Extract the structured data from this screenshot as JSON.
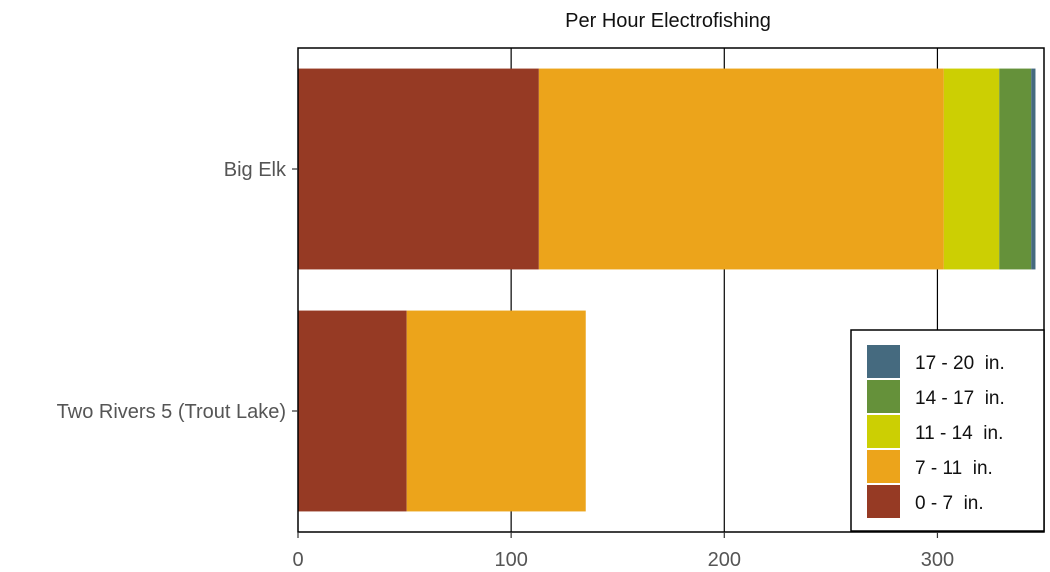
{
  "chart_data": {
    "type": "bar",
    "orientation": "horizontal",
    "stacked": true,
    "title": "Per Hour Electrofishing",
    "xlabel": "",
    "ylabel": "",
    "xlim": [
      0,
      350
    ],
    "x_ticks": [
      0,
      100,
      200,
      300
    ],
    "grid": true,
    "legend_position": "bottom-right",
    "categories": [
      "Big Elk",
      "Two Rivers 5 (Trout Lake)"
    ],
    "series": [
      {
        "name": "0 - 7  in.",
        "color": "#963a24",
        "values": [
          113,
          51
        ]
      },
      {
        "name": "7 - 11  in.",
        "color": "#eca41b",
        "values": [
          190,
          84
        ]
      },
      {
        "name": "11 - 14  in.",
        "color": "#cccf03",
        "values": [
          26,
          0
        ]
      },
      {
        "name": "14 - 17  in.",
        "color": "#65913a",
        "values": [
          15,
          0
        ]
      },
      {
        "name": "17 - 20  in.",
        "color": "#456a7f",
        "values": [
          2,
          0
        ]
      }
    ],
    "legend_order": [
      "17 - 20  in.",
      "14 - 17  in.",
      "11 - 14  in.",
      "7 - 11  in.",
      "0 - 7  in."
    ]
  }
}
